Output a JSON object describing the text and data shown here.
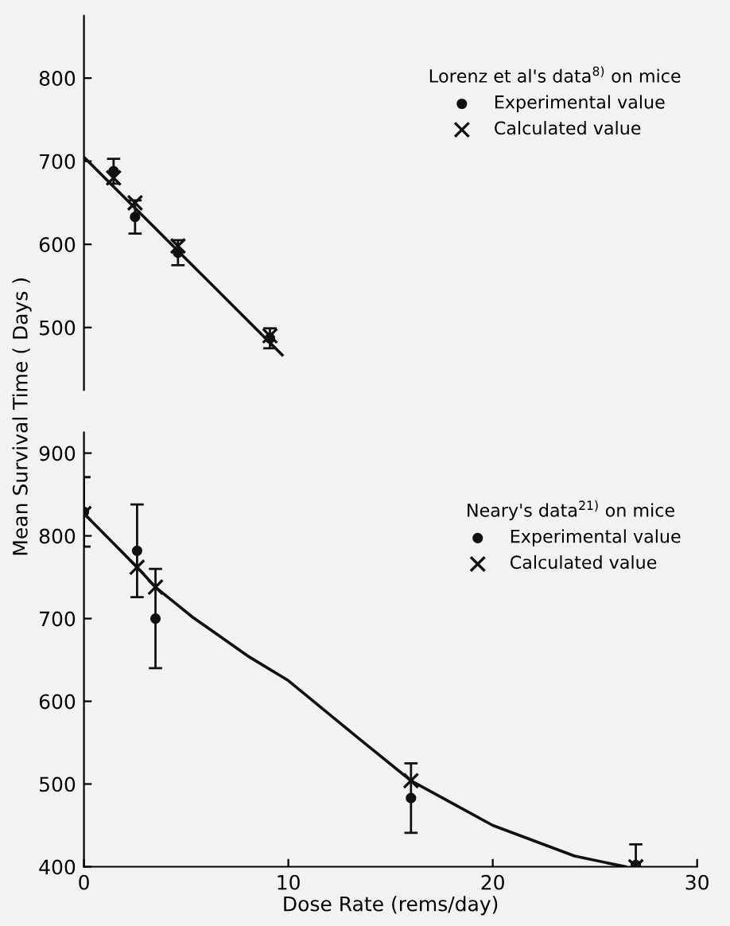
{
  "chart_data": [
    {
      "type": "scatter",
      "ylabel": "Mean Survival Time ( Days )",
      "legend_title": "Lorenz et al's data$^{8)}$ on mice",
      "legend": "top right",
      "tick_labels": "y",
      "xlim": [
        0,
        30
      ],
      "ylim": [
        425,
        875
      ],
      "yticks": [
        500,
        600,
        700,
        800
      ],
      "series": [
        {
          "type": "line",
          "color": "#111111",
          "marker": "none",
          "x": [
            0,
            9.7
          ],
          "values": [
            705,
            467
          ]
        },
        {
          "name": "Experimental value",
          "color": "#111111",
          "marker": "circle",
          "x": [
            1.45,
            2.5,
            4.6,
            9.1
          ],
          "values": [
            688,
            633,
            590,
            487
          ],
          "errors": [
            15,
            20,
            15,
            12
          ]
        },
        {
          "name": "Calculated value",
          "color": "#111111",
          "marker": "cross",
          "x": [
            1.45,
            2.5,
            4.6,
            9.1
          ],
          "values": [
            680,
            650,
            598,
            490
          ]
        }
      ]
    },
    {
      "type": "scatter",
      "xlabel": "Dose Rate (rems/day)",
      "legend_title": "Neary's data$^{21)}$ on mice",
      "legend": "top right",
      "xlim": [
        0,
        30
      ],
      "xticks": [
        0,
        10,
        20,
        30
      ],
      "ylim": [
        400,
        925
      ],
      "yticks": [
        400,
        500,
        600,
        700,
        800,
        900
      ],
      "series": [
        {
          "type": "line",
          "color": "#111111",
          "marker": "none",
          "x": [
            0,
            2.6,
            3.5,
            5.3,
            8,
            10,
            13.5,
            16,
            20,
            24,
            26.5
          ],
          "values": [
            827,
            762,
            738,
            702,
            655,
            625,
            554,
            504,
            450,
            413,
            400
          ]
        },
        {
          "name": "Experimental value",
          "color": "#111111",
          "marker": "circle",
          "x": [
            0,
            2.6,
            3.5,
            16,
            27
          ],
          "values": [
            829,
            782,
            700,
            483,
            402
          ],
          "errors": [
            42,
            56,
            60,
            42,
            25
          ]
        },
        {
          "name": "Calculated value",
          "color": "#111111",
          "marker": "cross",
          "x": [
            0,
            2.6,
            3.5,
            16,
            27
          ],
          "values": [
            827,
            762,
            738,
            504,
            400
          ]
        }
      ]
    }
  ]
}
